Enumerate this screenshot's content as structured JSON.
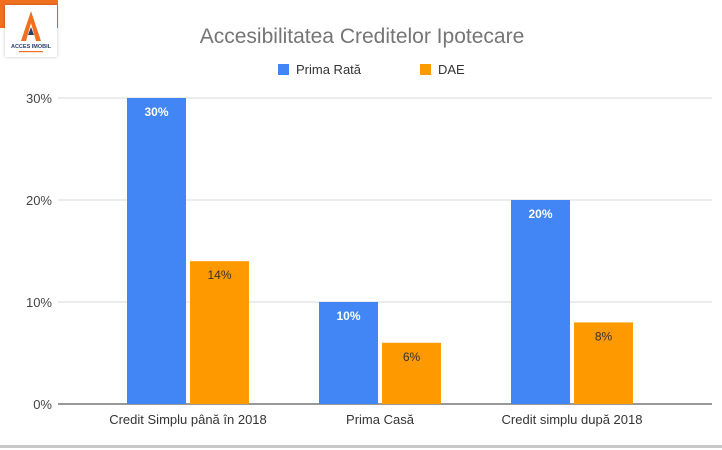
{
  "logo": {
    "text": "ACCES IMOBIL",
    "colors": {
      "orange": "#f07020",
      "dark": "#2c3e6b"
    }
  },
  "chart_data": {
    "type": "bar",
    "title": "Accesibilitatea Creditelor Ipotecare",
    "categories": [
      "Credit Simplu până în 2018",
      "Prima Casă",
      "Credit simplu după 2018"
    ],
    "series": [
      {
        "name": "Prima Rată",
        "values": [
          30,
          10,
          20
        ],
        "color": "#4285f4",
        "labels": [
          "30%",
          "10%",
          "20%"
        ]
      },
      {
        "name": "DAE",
        "values": [
          14,
          6,
          8
        ],
        "color": "#ff9900",
        "labels": [
          "14%",
          "6%",
          "8%"
        ]
      }
    ],
    "yticks": [
      "0%",
      "10%",
      "20%",
      "30%"
    ],
    "ylim": [
      0,
      30
    ],
    "grid": true,
    "legend": "top-center",
    "xlabel": "",
    "ylabel": ""
  }
}
